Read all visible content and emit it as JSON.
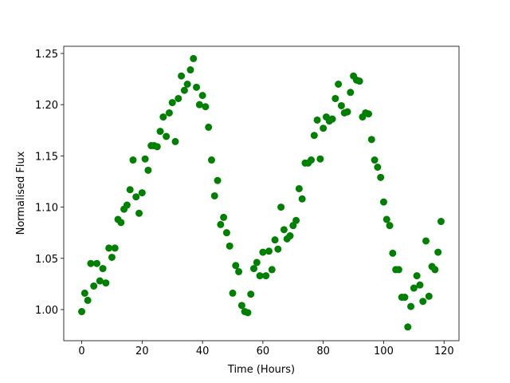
{
  "chart_data": {
    "type": "scatter",
    "xlabel": "Time (Hours)",
    "ylabel": "Normalised Flux",
    "x": [
      0,
      1,
      2,
      3,
      4,
      5,
      6,
      7,
      8,
      9,
      10,
      11,
      12,
      13,
      14,
      15,
      16,
      17,
      18,
      19,
      20,
      21,
      22,
      23,
      24,
      25,
      26,
      27,
      28,
      29,
      30,
      31,
      32,
      33,
      34,
      35,
      36,
      37,
      38,
      39,
      40,
      41,
      42,
      43,
      44,
      45,
      46,
      47,
      48,
      49,
      50,
      51,
      52,
      53,
      54,
      55,
      56,
      57,
      58,
      59,
      60,
      61,
      62,
      63,
      64,
      65,
      66,
      67,
      68,
      69,
      70,
      71,
      72,
      73,
      74,
      75,
      76,
      77,
      78,
      79,
      80,
      81,
      82,
      83,
      84,
      85,
      86,
      87,
      88,
      89,
      90,
      91,
      92,
      93,
      94,
      95,
      96,
      97,
      98,
      99,
      100,
      101,
      102,
      103,
      104,
      105,
      106,
      107,
      108,
      109,
      110,
      111,
      112,
      113,
      114,
      115,
      116,
      117,
      118,
      119
    ],
    "series": [
      {
        "color": "#008000",
        "values": [
          0.998,
          1.016,
          1.009,
          1.045,
          1.023,
          1.045,
          1.028,
          1.04,
          1.026,
          1.06,
          1.051,
          1.06,
          1.088,
          1.085,
          1.098,
          1.102,
          1.117,
          1.146,
          1.11,
          1.094,
          1.114,
          1.147,
          1.136,
          1.16,
          1.16,
          1.159,
          1.174,
          1.188,
          1.169,
          1.192,
          1.202,
          1.164,
          1.206,
          1.228,
          1.214,
          1.22,
          1.234,
          1.245,
          1.217,
          1.2,
          1.209,
          1.198,
          1.178,
          1.146,
          1.111,
          1.126,
          1.083,
          1.09,
          1.075,
          1.062,
          1.016,
          1.043,
          1.037,
          1.004,
          0.998,
          0.997,
          1.015,
          1.04,
          1.046,
          1.033,
          1.056,
          1.033,
          1.057,
          1.039,
          1.068,
          1.059,
          1.1,
          1.078,
          1.069,
          1.072,
          1.082,
          1.087,
          1.118,
          1.108,
          1.143,
          1.143,
          1.146,
          1.17,
          1.185,
          1.147,
          1.177,
          1.188,
          1.184,
          1.186,
          1.206,
          1.22,
          1.199,
          1.192,
          1.193,
          1.212,
          1.228,
          1.224,
          1.223,
          1.188,
          1.192,
          1.191,
          1.166,
          1.146,
          1.139,
          1.129,
          1.105,
          1.088,
          1.082,
          1.055,
          1.039,
          1.039,
          1.012,
          1.012,
          0.983,
          1.003,
          1.021,
          1.033,
          1.024,
          1.008,
          1.067,
          1.013,
          1.042,
          1.039,
          1.056,
          1.086
        ]
      }
    ],
    "xlim": [
      -5.95,
      124.95
    ],
    "xticks": [
      0,
      20,
      40,
      60,
      80,
      100,
      120
    ],
    "ylim": [
      0.9696,
      1.257
    ],
    "yticks": [
      {
        "value": 1,
        "label": "1.00"
      },
      {
        "value": 1.05,
        "label": "1.05"
      },
      {
        "value": 1.1,
        "label": "1.10"
      },
      {
        "value": 1.15,
        "label": "1.15"
      },
      {
        "value": 1.2,
        "label": "1.20"
      },
      {
        "value": 1.25,
        "label": "1.25"
      }
    ]
  }
}
